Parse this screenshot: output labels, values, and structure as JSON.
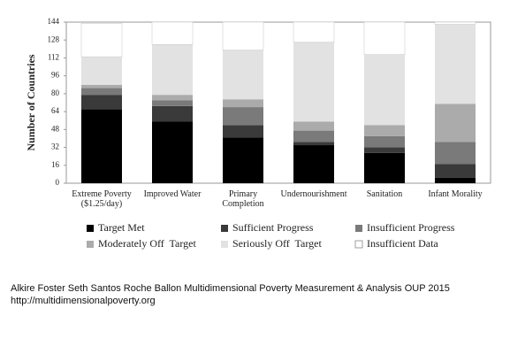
{
  "chart_data": {
    "type": "stacked_bar",
    "y_label": "Number of Countries",
    "categories": [
      "Extreme Poverty\n($1.25/day)",
      "Improved Water",
      "Primary\nCompletion",
      "Undernourishment",
      "Sanitation",
      "Infant Morality"
    ],
    "series": [
      {
        "name": "Target Met",
        "color": "#000000",
        "values": [
          66,
          55,
          41,
          34,
          27,
          5
        ]
      },
      {
        "name": "Sufficient Progress",
        "color": "#3a3a3a",
        "values": [
          13,
          14,
          11,
          3,
          5,
          12
        ]
      },
      {
        "name": "Insufficient Progress",
        "color": "#7a7a7a",
        "values": [
          6,
          5,
          16,
          10,
          10,
          20
        ]
      },
      {
        "name": "Moderately Off  Target",
        "color": "#ababab",
        "values": [
          3,
          5,
          7,
          8,
          10,
          34
        ]
      },
      {
        "name": "Seriously Off  Target",
        "color": "#e2e2e2",
        "values": [
          25,
          45,
          44,
          71,
          63,
          71
        ]
      },
      {
        "name": "Insufficient Data",
        "color": "#ffffff",
        "values": [
          30,
          20,
          25,
          18,
          29,
          2
        ]
      }
    ],
    "ylim": [
      0,
      144
    ],
    "yticks": [
      0,
      16,
      32,
      48,
      64,
      80,
      96,
      112,
      128,
      144
    ],
    "legend_position": "bottom"
  },
  "source": {
    "citation": "Alkire Foster Seth Santos Roche Ballon Multidimensional Poverty Measurement & Analysis OUP 2015",
    "url": "http://multidimensionalpoverty.org"
  }
}
